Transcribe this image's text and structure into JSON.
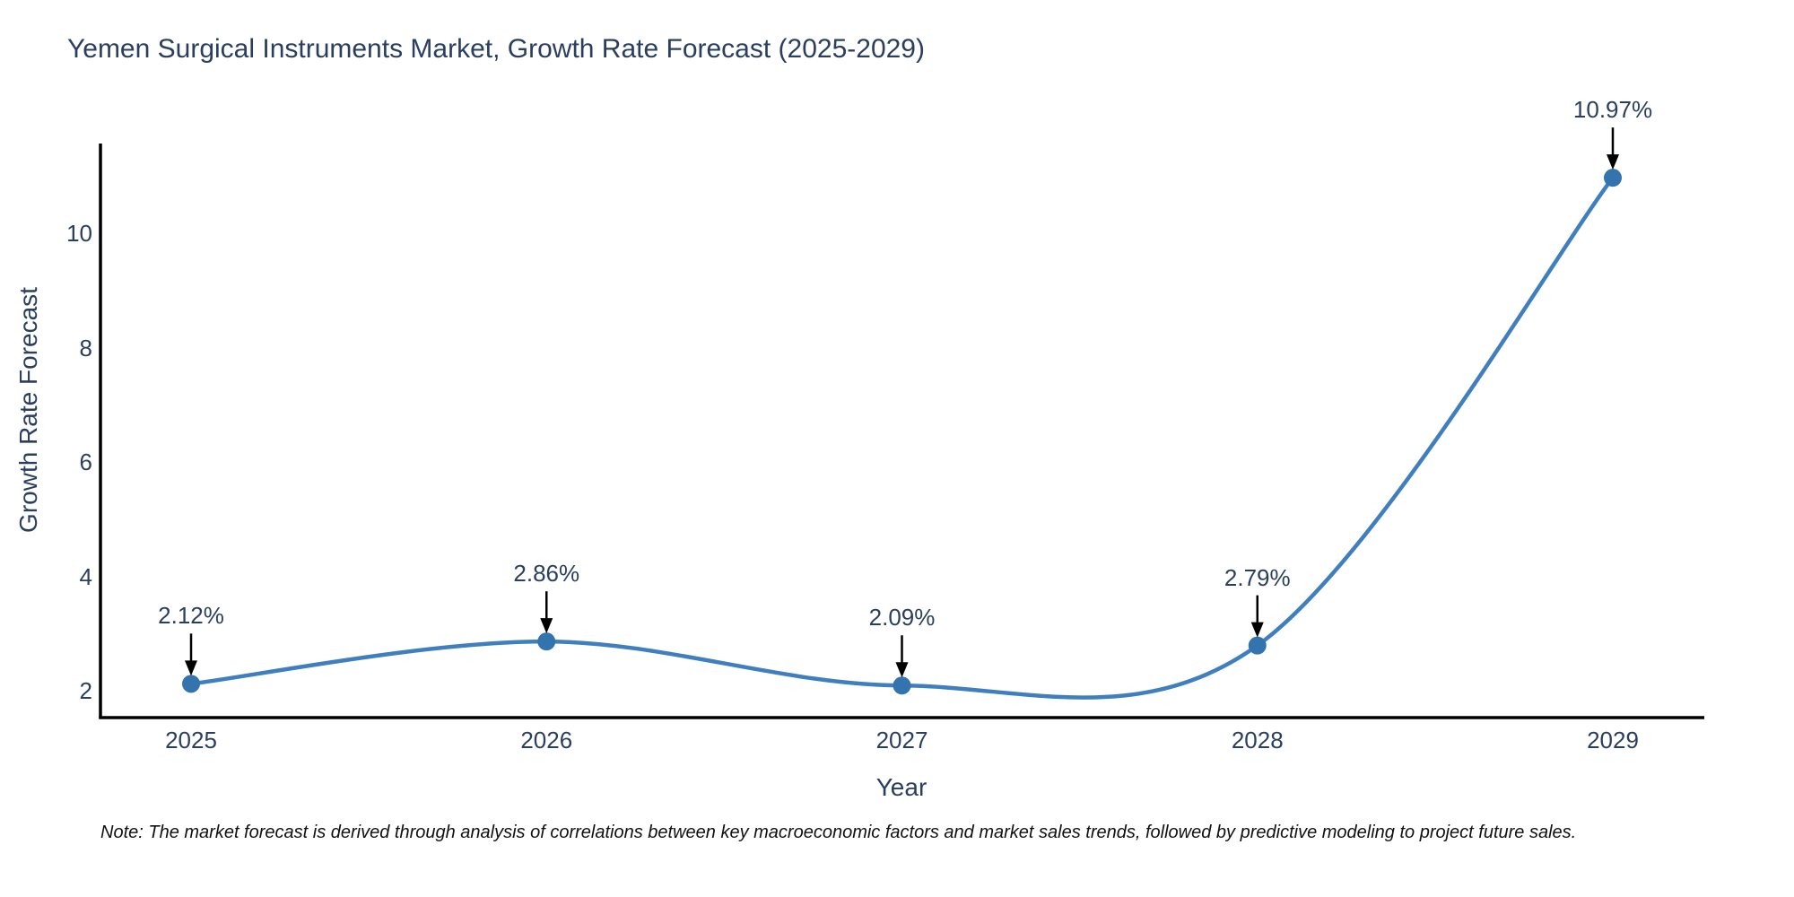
{
  "title": "Yemen Surgical Instruments Market, Growth Rate Forecast (2025-2029)",
  "note": "Note: The market forecast is derived through analysis of correlations between key macroeconomic factors and market sales trends, followed by predictive modeling to project future sales.",
  "chart_data": {
    "type": "line",
    "title": "Yemen Surgical Instruments Market, Growth Rate Forecast (2025-2029)",
    "xlabel": "Year",
    "ylabel": "Growth Rate Forecast",
    "categories": [
      "2025",
      "2026",
      "2027",
      "2028",
      "2029"
    ],
    "series": [
      {
        "name": "Growth Rate Forecast",
        "values": [
          2.12,
          2.86,
          2.09,
          2.79,
          10.97
        ]
      }
    ],
    "point_labels": [
      "2.12%",
      "2.86%",
      "2.09%",
      "2.79%",
      "10.97%"
    ],
    "yticks": [
      2,
      4,
      6,
      8,
      10
    ],
    "ylim": [
      1.53,
      12.04
    ],
    "line_shape": "spline",
    "grid": false,
    "legend": "none",
    "colors": {
      "line": "#3f7fbf",
      "marker": "#3474ae",
      "axis": "#000000",
      "text": "#2a3f5f",
      "arrow": "#000000",
      "background": "#ffffff"
    }
  }
}
